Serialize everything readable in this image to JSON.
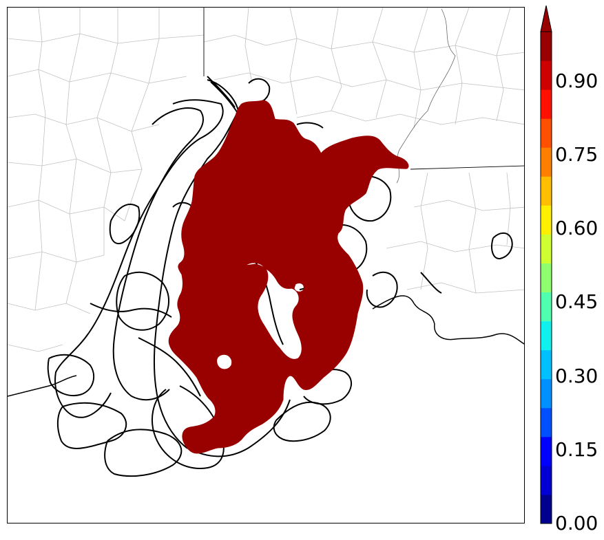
{
  "map": {
    "plume_color": "#990000",
    "member_outline_color": "#000000",
    "boundary_color": "#bdbdbd"
  },
  "colorbar": {
    "colors": [
      "#00008f",
      "#0000d5",
      "#0000ff",
      "#0050ff",
      "#0090ff",
      "#00c0ff",
      "#10f0ef",
      "#4fffaf",
      "#8fff6f",
      "#cfff30",
      "#ffef00",
      "#ffbf00",
      "#ff8000",
      "#ff4f00",
      "#ff1000",
      "#cf0000",
      "#990000"
    ],
    "extend_max": true,
    "ticks": [
      "0.00",
      "0.15",
      "0.30",
      "0.45",
      "0.60",
      "0.75",
      "0.90"
    ]
  }
}
